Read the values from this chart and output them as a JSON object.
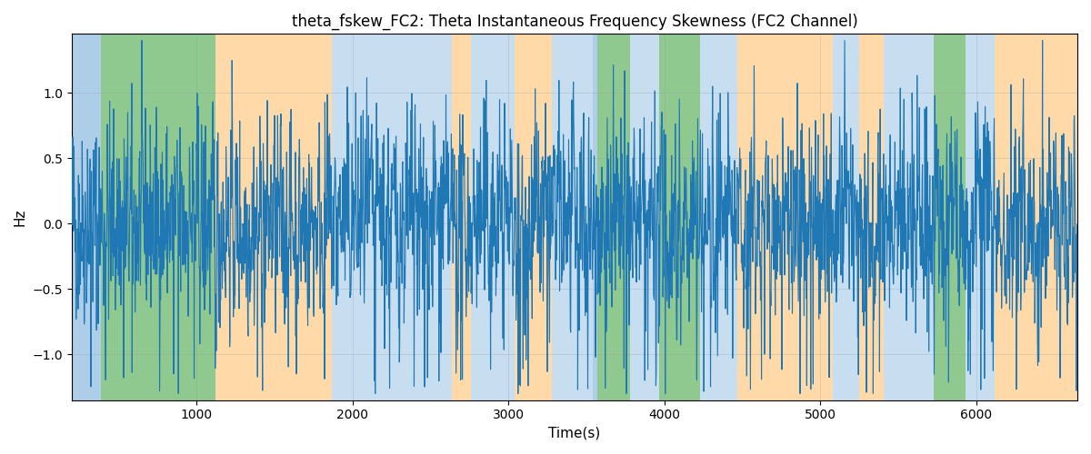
{
  "title": "theta_fskew_FC2: Theta Instantaneous Frequency Skewness (FC2 Channel)",
  "xlabel": "Time(s)",
  "ylabel": "Hz",
  "xlim": [
    200,
    6650
  ],
  "ylim": [
    -1.35,
    1.45
  ],
  "line_color": "#1f77b4",
  "line_width": 0.8,
  "background_regions": [
    {
      "xstart": 200,
      "xend": 390,
      "color": "#aecde8"
    },
    {
      "xstart": 390,
      "xend": 1120,
      "color": "#90c990"
    },
    {
      "xstart": 1120,
      "xend": 1870,
      "color": "#ffd9a8"
    },
    {
      "xstart": 1870,
      "xend": 2640,
      "color": "#c7ddf0"
    },
    {
      "xstart": 2640,
      "xend": 2760,
      "color": "#ffd9a8"
    },
    {
      "xstart": 2760,
      "xend": 3040,
      "color": "#c7ddf0"
    },
    {
      "xstart": 3040,
      "xend": 3280,
      "color": "#ffd9a8"
    },
    {
      "xstart": 3280,
      "xend": 3540,
      "color": "#c7ddf0"
    },
    {
      "xstart": 3540,
      "xend": 3570,
      "color": "#aecde8"
    },
    {
      "xstart": 3570,
      "xend": 3780,
      "color": "#90c990"
    },
    {
      "xstart": 3780,
      "xend": 3970,
      "color": "#c7ddf0"
    },
    {
      "xstart": 3970,
      "xend": 4230,
      "color": "#90c990"
    },
    {
      "xstart": 4230,
      "xend": 4470,
      "color": "#c7ddf0"
    },
    {
      "xstart": 4470,
      "xend": 5080,
      "color": "#ffd9a8"
    },
    {
      "xstart": 5080,
      "xend": 5250,
      "color": "#c7ddf0"
    },
    {
      "xstart": 5250,
      "xend": 5410,
      "color": "#ffd9a8"
    },
    {
      "xstart": 5410,
      "xend": 5730,
      "color": "#c7ddf0"
    },
    {
      "xstart": 5730,
      "xend": 5930,
      "color": "#90c990"
    },
    {
      "xstart": 5930,
      "xend": 6120,
      "color": "#c7ddf0"
    },
    {
      "xstart": 6120,
      "xend": 6650,
      "color": "#ffd9a8"
    }
  ],
  "grid_color": "#999999",
  "grid_alpha": 0.4,
  "yticks": [
    -1.0,
    -0.5,
    0.0,
    0.5,
    1.0
  ],
  "xticks": [
    1000,
    2000,
    3000,
    4000,
    5000,
    6000
  ],
  "seed": 42,
  "n_points": 3000
}
